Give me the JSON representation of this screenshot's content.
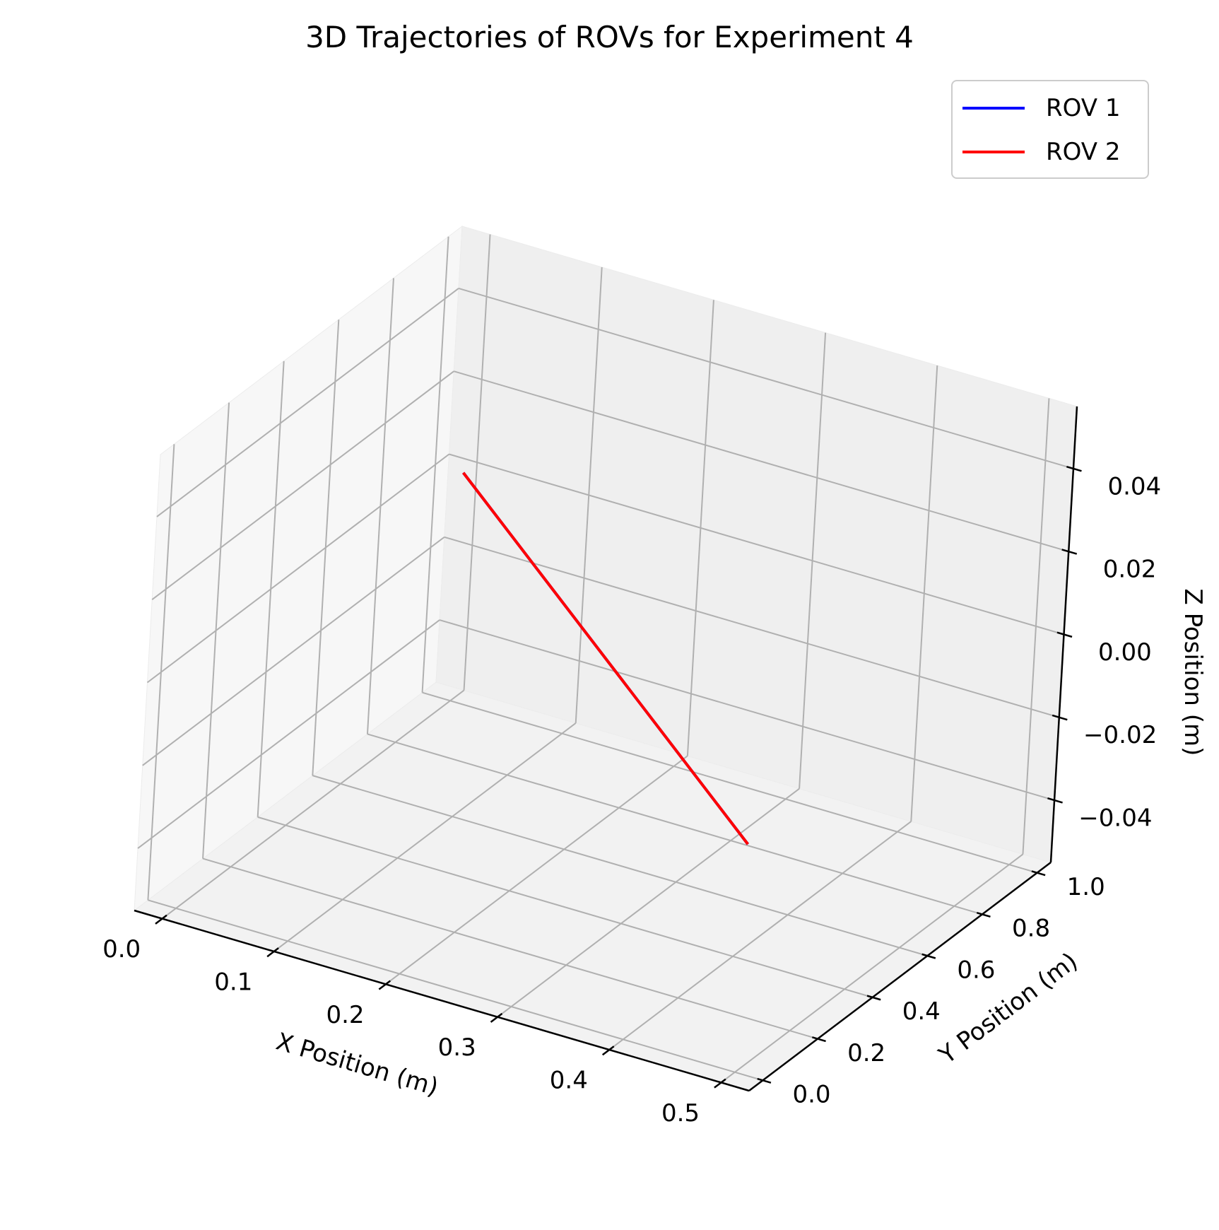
{
  "chart_data": {
    "type": "line",
    "projection": "3d",
    "title": "3D Trajectories of ROVs for Experiment 4",
    "xlabel": "X Position (m)",
    "ylabel": "Y Position (m)",
    "zlabel": "Z Position (m)",
    "xlim": [
      -0.025,
      0.525
    ],
    "ylim": [
      -0.05,
      1.05
    ],
    "zlim": [
      -0.055,
      0.055
    ],
    "x_ticks": [
      "0.0",
      "0.1",
      "0.2",
      "0.3",
      "0.4",
      "0.5"
    ],
    "y_ticks": [
      "0.0",
      "0.2",
      "0.4",
      "0.6",
      "0.8",
      "1.0"
    ],
    "z_ticks": [
      "−0.04",
      "−0.02",
      "0.00",
      "0.02",
      "0.04"
    ],
    "grid": true,
    "legend_position": "top-right",
    "series": [
      {
        "name": "ROV 1",
        "color": "#0000ff",
        "x": [
          0,
          0.5
        ],
        "y": [
          1,
          0
        ],
        "z": [
          0,
          0
        ]
      },
      {
        "name": "ROV 2",
        "color": "#ff0000",
        "x": [
          0,
          0.5
        ],
        "y": [
          1,
          0
        ],
        "z": [
          0,
          0
        ]
      }
    ]
  }
}
